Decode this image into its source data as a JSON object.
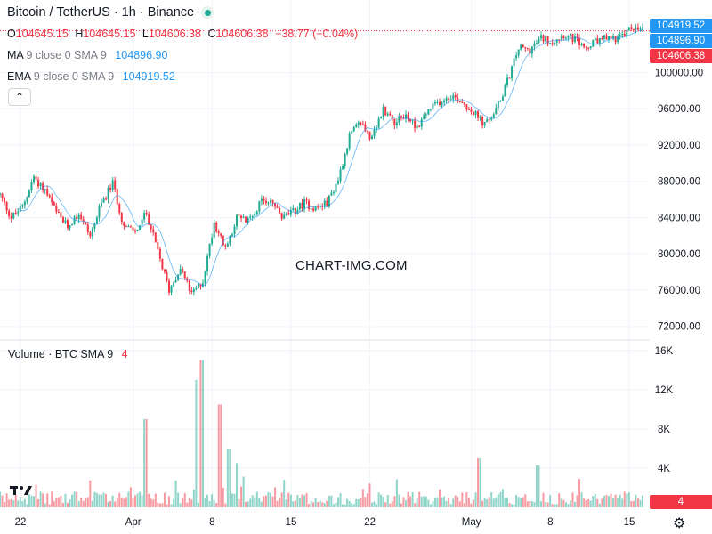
{
  "header": {
    "title": "Bitcoin / TetherUS · 1h · Binance",
    "ohlc": [
      {
        "key": "O",
        "value": "104645.15"
      },
      {
        "key": "H",
        "value": "104645.15"
      },
      {
        "key": "L",
        "value": "104606.38"
      },
      {
        "key": "C",
        "value": "104606.38"
      }
    ],
    "change": "−38.77 (−0.04%)"
  },
  "indicators": {
    "ma": {
      "label": "MA",
      "params": "9 close 0 SMA 9",
      "value": "104896.90",
      "color": "#2196f3"
    },
    "ema": {
      "label": "EMA",
      "params": "9 close 0 SMA 9",
      "value": "104919.52",
      "color": "#2196f3"
    }
  },
  "volume_legend": {
    "label": "Volume",
    "unit": "BTC",
    "params": "SMA 9",
    "value": "4"
  },
  "price_tags": {
    "ema": "104919.52",
    "ma": "104896.90",
    "last": "104606.38",
    "volume": "4"
  },
  "watermark": "CHART-IMG.COM",
  "colors": {
    "up": "#22ab94",
    "down": "#f23645",
    "ma_line": "#2196f3",
    "grid": "#f0f3fa",
    "price_tag_blue": "#2196f3",
    "price_tag_red": "#f23645"
  },
  "icons": {
    "logo": "tradingview-logo-icon",
    "settings": "gear-icon"
  },
  "chart_data": {
    "type": "candlestick",
    "symbol": "BTCUSDT",
    "interval": "1h",
    "price_axis": {
      "ticks": [
        "72000.00",
        "76000.00",
        "80000.00",
        "84000.00",
        "88000.00",
        "92000.00",
        "96000.00",
        "100000.00"
      ],
      "tick_values": [
        72000,
        76000,
        80000,
        84000,
        88000,
        92000,
        96000,
        100000
      ],
      "ylim": [
        70500,
        108000
      ]
    },
    "volume_axis": {
      "ticks": [
        "4K",
        "8K",
        "12K",
        "16K"
      ],
      "tick_values": [
        4000,
        8000,
        12000,
        16000
      ],
      "ylim": [
        0,
        16800
      ]
    },
    "time_axis": {
      "labels": [
        {
          "text": "22",
          "index": 0
        },
        {
          "text": "Apr",
          "index": 10
        },
        {
          "text": "8",
          "index": 17
        },
        {
          "text": "15",
          "index": 24
        },
        {
          "text": "22",
          "index": 31
        },
        {
          "text": "May",
          "index": 40
        },
        {
          "text": "8",
          "index": 47
        },
        {
          "text": "15",
          "index": 54
        }
      ]
    },
    "close_path": [
      86500,
      84000,
      85200,
      88500,
      87000,
      84500,
      83000,
      84500,
      82000,
      85500,
      87800,
      83000,
      82500,
      84500,
      80200,
      76000,
      78500,
      75500,
      77000,
      83500,
      80500,
      84000,
      83600,
      85500,
      86000,
      84000,
      84600,
      85600,
      85000,
      85600,
      88200,
      93000,
      94500,
      92600,
      96000,
      94600,
      95200,
      94000,
      95800,
      96800,
      97500,
      96800,
      95600,
      94200,
      95800,
      99000,
      102700,
      102500,
      103800,
      103500,
      104200,
      103600,
      102600,
      103500,
      103800,
      103800,
      104900,
      104600
    ],
    "volume_spikes": [
      {
        "index": 12.9,
        "value": 9000
      },
      {
        "index": 17.4,
        "value": 13000
      },
      {
        "index": 17.9,
        "value": 15000
      },
      {
        "index": 19.5,
        "value": 10500
      },
      {
        "index": 20.3,
        "value": 6000
      },
      {
        "index": 21.0,
        "value": 4500
      },
      {
        "index": 42.5,
        "value": 5000
      },
      {
        "index": 47.7,
        "value": 4300
      }
    ]
  }
}
